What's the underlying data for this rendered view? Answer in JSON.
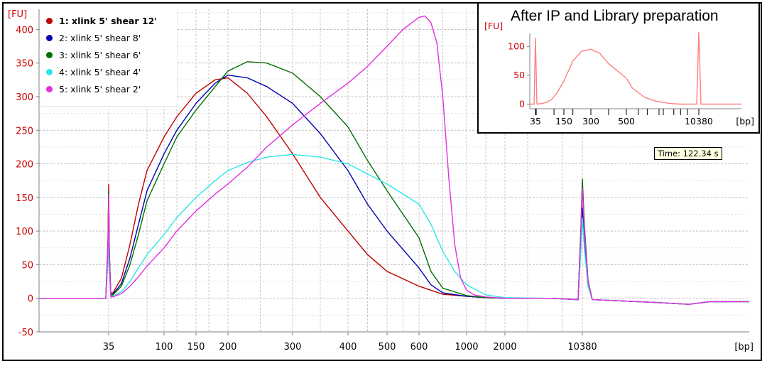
{
  "chart_data": [
    {
      "type": "line",
      "title": "",
      "ylabel": "[FU]",
      "xlabel": "[bp]",
      "ylim": [
        -50,
        430
      ],
      "y_ticks": [
        -50,
        0,
        50,
        100,
        150,
        200,
        250,
        300,
        350,
        400
      ],
      "x_tick_labels": [
        "35",
        "100",
        "150",
        "200",
        "300",
        "400",
        "500",
        "600",
        "1000",
        "2000",
        "10380"
      ],
      "grid": true,
      "legend_placement": "top-left",
      "tooltip": "Time: 122.34 s",
      "x_note": "x positions are bp values on the instrument's non-linear sizing scale; 'L' marks the lower marker (35 bp) and 'U' the upper marker (10380 bp)",
      "markers": [
        {
          "label": "35",
          "peak": {
            "1": 170,
            "2": 125,
            "3": 160,
            "4": 110,
            "5": 155
          }
        },
        {
          "label": "10380",
          "peak": {
            "1": 170,
            "2": 135,
            "3": 178,
            "4": 120,
            "5": 165
          }
        }
      ],
      "series": [
        {
          "name": "1: xlink 5' shear 12'",
          "color": "#c00000",
          "x": [
            40,
            50,
            60,
            70,
            80,
            100,
            120,
            150,
            180,
            200,
            230,
            260,
            300,
            350,
            400,
            450,
            500,
            600,
            800,
            1000,
            1500,
            2000,
            5000
          ],
          "y": [
            8,
            30,
            80,
            140,
            190,
            240,
            270,
            305,
            325,
            328,
            305,
            270,
            215,
            150,
            100,
            65,
            40,
            18,
            6,
            3,
            1,
            0,
            0
          ]
        },
        {
          "name": "2: xlink 5' shear 8'",
          "color": "#0000b4",
          "x": [
            40,
            50,
            60,
            70,
            80,
            100,
            120,
            150,
            180,
            200,
            230,
            260,
            300,
            350,
            400,
            450,
            500,
            600,
            700,
            800,
            1000,
            1500,
            2000,
            5000
          ],
          "y": [
            6,
            22,
            60,
            110,
            160,
            215,
            250,
            290,
            320,
            332,
            328,
            315,
            290,
            245,
            190,
            140,
            100,
            45,
            20,
            8,
            3,
            1,
            0,
            0
          ]
        },
        {
          "name": "3: xlink 5' shear 6'",
          "color": "#007000",
          "x": [
            40,
            50,
            60,
            70,
            80,
            100,
            120,
            150,
            180,
            200,
            230,
            260,
            300,
            350,
            400,
            450,
            500,
            600,
            700,
            800,
            1000,
            1500,
            2000,
            5000
          ],
          "y": [
            5,
            18,
            50,
            95,
            145,
            200,
            240,
            280,
            315,
            338,
            352,
            350,
            335,
            300,
            255,
            205,
            160,
            90,
            40,
            15,
            4,
            1,
            0,
            0
          ]
        },
        {
          "name": "4: xlink 5' shear 4'",
          "color": "#2ee6e6",
          "x": [
            40,
            50,
            60,
            70,
            80,
            100,
            120,
            150,
            180,
            200,
            230,
            260,
            300,
            350,
            400,
            450,
            500,
            600,
            700,
            800,
            900,
            1000,
            1500,
            2000,
            5000
          ],
          "y": [
            3,
            10,
            25,
            45,
            65,
            95,
            120,
            150,
            175,
            190,
            202,
            210,
            214,
            210,
            200,
            185,
            170,
            140,
            110,
            70,
            40,
            20,
            5,
            1,
            0
          ]
        },
        {
          "name": "5: xlink 5' shear 2'",
          "color": "#e030e0",
          "x": [
            40,
            50,
            60,
            70,
            80,
            100,
            120,
            150,
            180,
            200,
            230,
            260,
            300,
            350,
            400,
            450,
            500,
            550,
            600,
            650,
            700,
            750,
            800,
            850,
            900,
            950,
            1000,
            1200,
            1500,
            2000,
            5000
          ],
          "y": [
            2,
            7,
            18,
            32,
            48,
            75,
            100,
            130,
            155,
            170,
            195,
            225,
            258,
            290,
            320,
            345,
            375,
            400,
            418,
            420,
            410,
            380,
            300,
            180,
            80,
            30,
            12,
            5,
            2,
            0,
            0
          ]
        }
      ]
    },
    {
      "type": "line",
      "title": "After IP and Library preparation",
      "ylabel": "[FU]",
      "xlabel": "[bp]",
      "ylim": [
        -8,
        125
      ],
      "y_ticks": [
        0,
        50,
        100
      ],
      "x_tick_labels": [
        "35",
        "150",
        "300",
        "500",
        "10380"
      ],
      "series": [
        {
          "name": "",
          "color": "#ff8080",
          "x": [
            40,
            60,
            80,
            100,
            120,
            150,
            200,
            250,
            300,
            350,
            400,
            500,
            600,
            800,
            1000,
            2000,
            5000
          ],
          "y": [
            0,
            1,
            3,
            8,
            18,
            40,
            75,
            92,
            95,
            88,
            70,
            45,
            28,
            12,
            5,
            1,
            0
          ]
        }
      ],
      "markers": [
        {
          "label": "35",
          "peak": 115
        },
        {
          "label": "10380",
          "peak": 150
        }
      ]
    }
  ],
  "legend": [
    {
      "label": "1: xlink 5' shear 12'",
      "color": "#c00000",
      "bold": true
    },
    {
      "label": "2: xlink 5' shear 8'",
      "color": "#0000b4",
      "bold": false
    },
    {
      "label": "3: xlink 5' shear 6'",
      "color": "#007000",
      "bold": false
    },
    {
      "label": "4: xlink 5' shear 4'",
      "color": "#2ee6e6",
      "bold": false
    },
    {
      "label": "5: xlink 5' shear 2'",
      "color": "#e030e0",
      "bold": false
    }
  ],
  "inset_title": "After IP and Library preparation",
  "tooltip": "Time: 122.34 s",
  "colors": {
    "axis_label": "#cc0000",
    "grid": "#c0c0c0",
    "inset_line": "#ff8080"
  }
}
